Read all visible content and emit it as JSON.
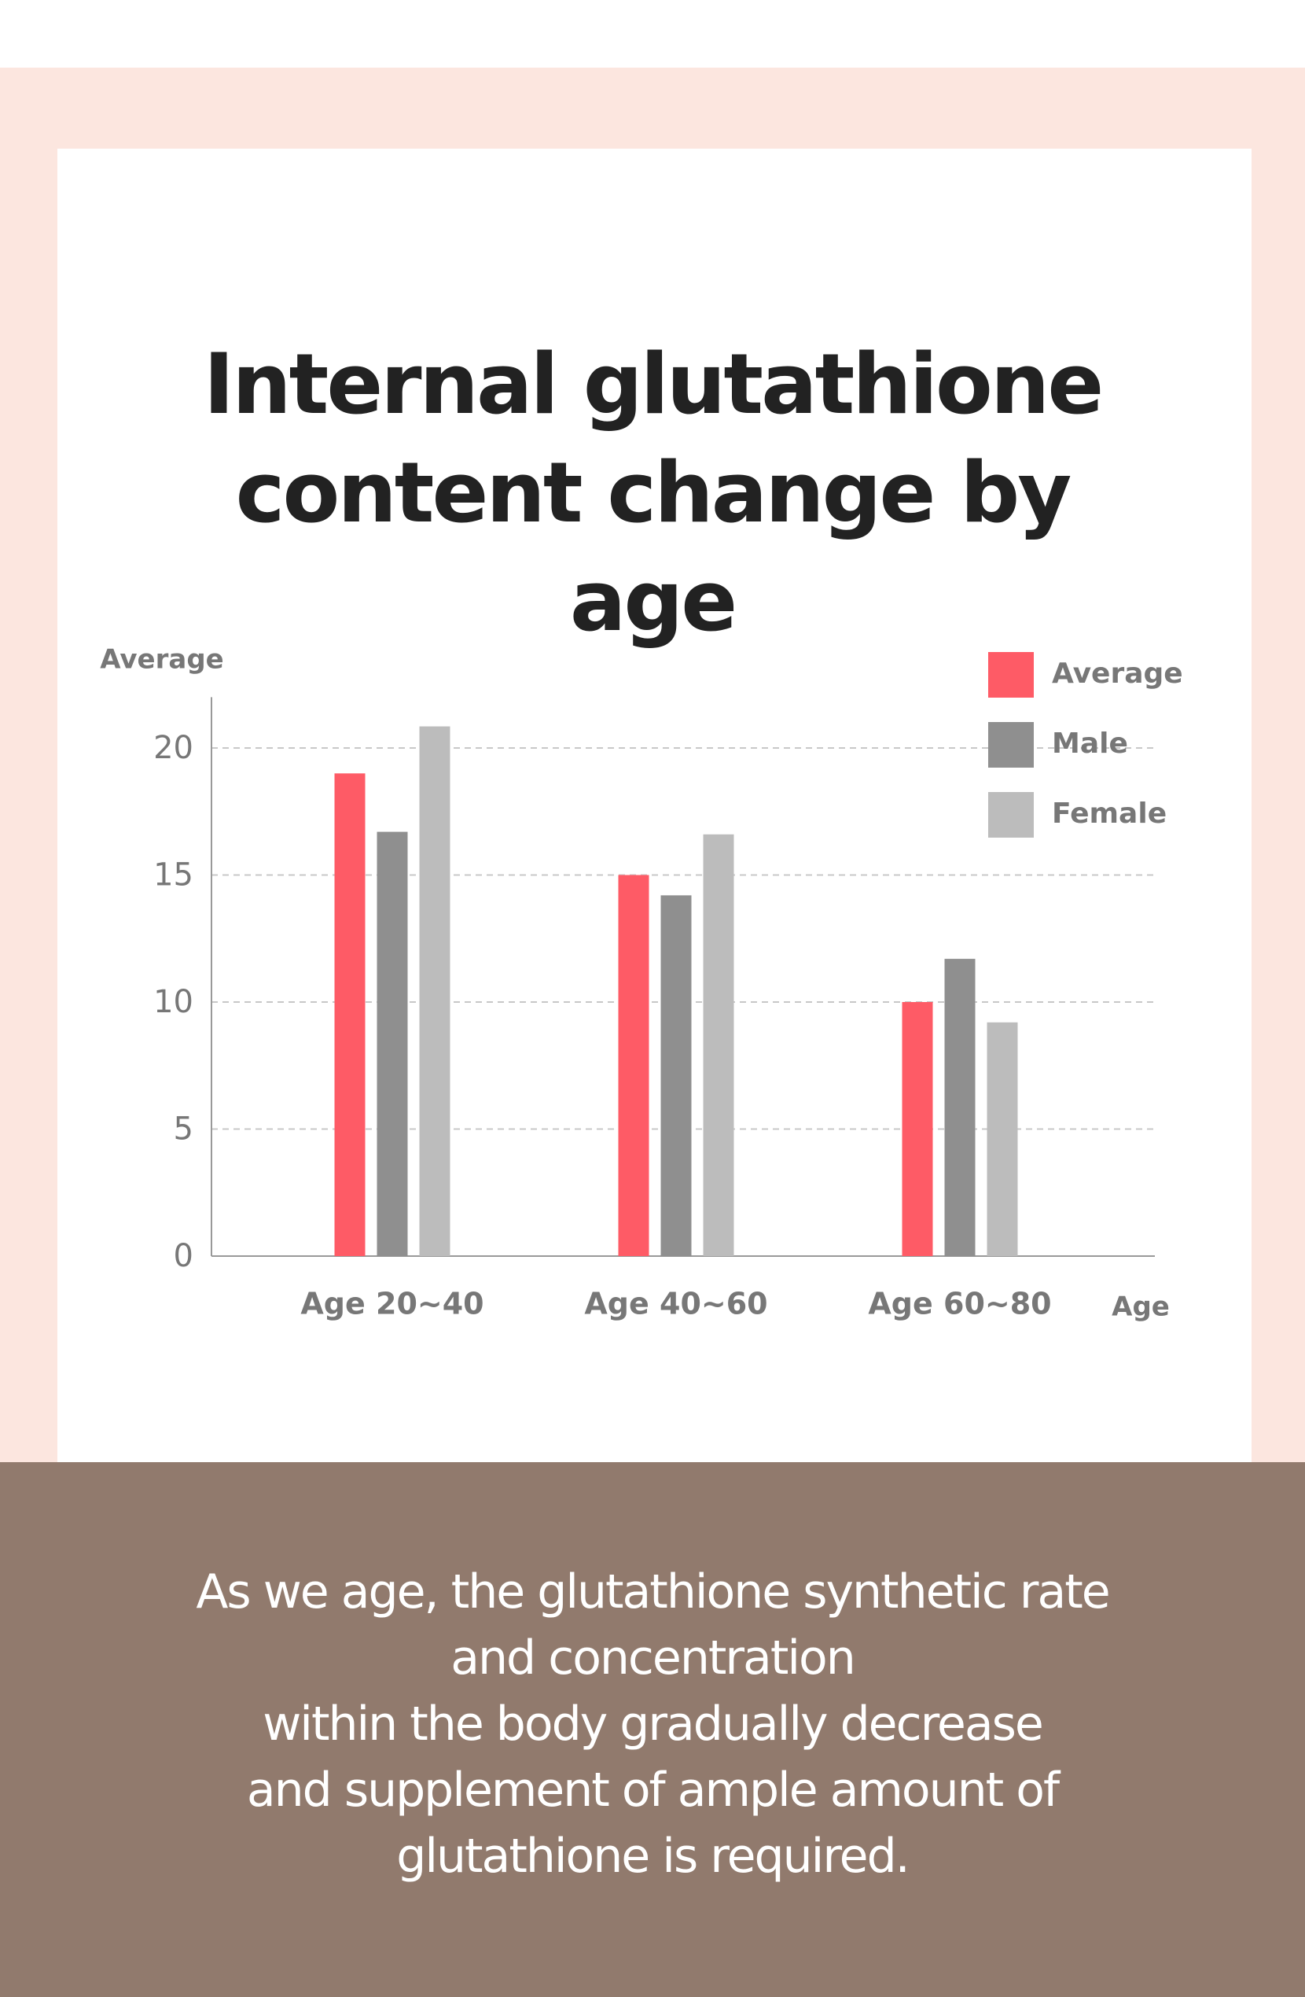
{
  "chart_data": {
    "type": "bar",
    "title": "Internal glutathione content change by age",
    "y_label": "Average",
    "x_label": "Age",
    "categories": [
      "Age 20~40",
      "Age 40~60",
      "Age 60~80"
    ],
    "series": [
      {
        "name": "Average",
        "color": "#fe5b66",
        "values": [
          19,
          15,
          10
        ]
      },
      {
        "name": "Male",
        "color": "#8f8f8f",
        "values": [
          16.7,
          14.2,
          11.7
        ]
      },
      {
        "name": "Female",
        "color": "#bcbcbc",
        "values": [
          20.85,
          16.6,
          9.2
        ]
      }
    ],
    "ylim": [
      0,
      22
    ],
    "yticks": [
      0,
      5,
      10,
      15,
      20
    ],
    "grid": true,
    "legend": "top-right"
  },
  "caption": [
    "As we age, the glutathione synthetic rate",
    "and concentration",
    "within the body gradually decrease",
    "and supplement of ample amount of",
    "glutathione is required."
  ]
}
